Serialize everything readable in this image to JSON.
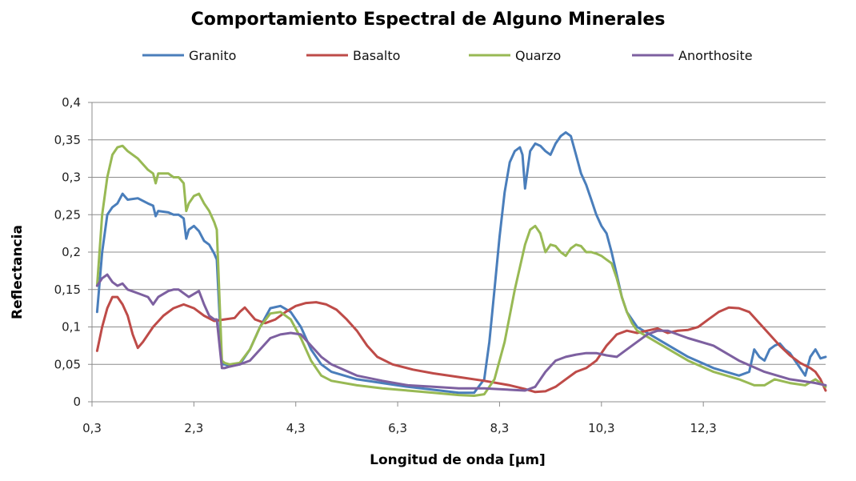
{
  "chart_data": {
    "type": "line",
    "title": "Comportamiento Espectral de Alguno Minerales",
    "xlabel": "Longitud de onda [µm]",
    "ylabel": "Reflectancia",
    "xlim": [
      0.3,
      14.7
    ],
    "ylim": [
      0,
      0.4
    ],
    "x_ticks": [
      "0,3",
      "2,3",
      "4,3",
      "6,3",
      "8,3",
      "10,3",
      "12,3"
    ],
    "x_tick_values": [
      0.3,
      2.3,
      4.3,
      6.3,
      8.3,
      10.3,
      12.3
    ],
    "y_ticks": [
      "0",
      "0,05",
      "0,1",
      "0,15",
      "0,2",
      "0,25",
      "0,3",
      "0,35",
      "0,4"
    ],
    "y_tick_values": [
      0,
      0.05,
      0.1,
      0.15,
      0.2,
      0.25,
      0.3,
      0.35,
      0.4
    ],
    "grid": "horizontal",
    "legend_position": "top",
    "series": [
      {
        "name": "Granito",
        "color": "#4a7ebb",
        "points": [
          [
            0.4,
            0.12
          ],
          [
            0.5,
            0.2
          ],
          [
            0.6,
            0.25
          ],
          [
            0.7,
            0.26
          ],
          [
            0.8,
            0.265
          ],
          [
            0.9,
            0.278
          ],
          [
            1.0,
            0.27
          ],
          [
            1.2,
            0.272
          ],
          [
            1.4,
            0.265
          ],
          [
            1.5,
            0.262
          ],
          [
            1.55,
            0.248
          ],
          [
            1.6,
            0.255
          ],
          [
            1.8,
            0.253
          ],
          [
            1.9,
            0.25
          ],
          [
            2.0,
            0.25
          ],
          [
            2.1,
            0.245
          ],
          [
            2.15,
            0.218
          ],
          [
            2.2,
            0.23
          ],
          [
            2.3,
            0.235
          ],
          [
            2.4,
            0.228
          ],
          [
            2.5,
            0.215
          ],
          [
            2.6,
            0.21
          ],
          [
            2.7,
            0.198
          ],
          [
            2.75,
            0.19
          ],
          [
            2.85,
            0.05
          ],
          [
            2.9,
            0.05
          ],
          [
            3.0,
            0.048
          ],
          [
            3.2,
            0.05
          ],
          [
            3.4,
            0.07
          ],
          [
            3.6,
            0.1
          ],
          [
            3.8,
            0.125
          ],
          [
            4.0,
            0.128
          ],
          [
            4.2,
            0.12
          ],
          [
            4.4,
            0.1
          ],
          [
            4.6,
            0.07
          ],
          [
            4.8,
            0.05
          ],
          [
            5.0,
            0.04
          ],
          [
            5.5,
            0.03
          ],
          [
            6.0,
            0.025
          ],
          [
            6.5,
            0.02
          ],
          [
            7.0,
            0.016
          ],
          [
            7.5,
            0.012
          ],
          [
            7.8,
            0.012
          ],
          [
            8.0,
            0.03
          ],
          [
            8.1,
            0.08
          ],
          [
            8.2,
            0.15
          ],
          [
            8.3,
            0.22
          ],
          [
            8.4,
            0.28
          ],
          [
            8.5,
            0.32
          ],
          [
            8.6,
            0.335
          ],
          [
            8.7,
            0.34
          ],
          [
            8.75,
            0.33
          ],
          [
            8.8,
            0.285
          ],
          [
            8.85,
            0.31
          ],
          [
            8.9,
            0.335
          ],
          [
            9.0,
            0.345
          ],
          [
            9.1,
            0.342
          ],
          [
            9.2,
            0.335
          ],
          [
            9.3,
            0.33
          ],
          [
            9.4,
            0.345
          ],
          [
            9.5,
            0.355
          ],
          [
            9.6,
            0.36
          ],
          [
            9.7,
            0.355
          ],
          [
            9.8,
            0.33
          ],
          [
            9.9,
            0.305
          ],
          [
            10.0,
            0.29
          ],
          [
            10.1,
            0.27
          ],
          [
            10.2,
            0.25
          ],
          [
            10.3,
            0.235
          ],
          [
            10.4,
            0.225
          ],
          [
            10.5,
            0.2
          ],
          [
            10.6,
            0.17
          ],
          [
            10.7,
            0.14
          ],
          [
            10.8,
            0.12
          ],
          [
            11.0,
            0.1
          ],
          [
            11.5,
            0.08
          ],
          [
            12.0,
            0.06
          ],
          [
            12.5,
            0.045
          ],
          [
            13.0,
            0.035
          ],
          [
            13.2,
            0.04
          ],
          [
            13.3,
            0.07
          ],
          [
            13.4,
            0.06
          ],
          [
            13.5,
            0.055
          ],
          [
            13.6,
            0.07
          ],
          [
            13.7,
            0.075
          ],
          [
            13.8,
            0.078
          ],
          [
            13.9,
            0.07
          ],
          [
            14.0,
            0.065
          ],
          [
            14.1,
            0.055
          ],
          [
            14.2,
            0.045
          ],
          [
            14.3,
            0.035
          ],
          [
            14.4,
            0.06
          ],
          [
            14.5,
            0.07
          ],
          [
            14.6,
            0.058
          ],
          [
            14.7,
            0.06
          ]
        ]
      },
      {
        "name": "Basalto",
        "color": "#be4b48",
        "points": [
          [
            0.4,
            0.068
          ],
          [
            0.5,
            0.1
          ],
          [
            0.6,
            0.125
          ],
          [
            0.7,
            0.14
          ],
          [
            0.8,
            0.14
          ],
          [
            0.9,
            0.13
          ],
          [
            1.0,
            0.115
          ],
          [
            1.1,
            0.09
          ],
          [
            1.2,
            0.072
          ],
          [
            1.3,
            0.08
          ],
          [
            1.5,
            0.1
          ],
          [
            1.7,
            0.115
          ],
          [
            1.9,
            0.125
          ],
          [
            2.1,
            0.13
          ],
          [
            2.3,
            0.125
          ],
          [
            2.5,
            0.115
          ],
          [
            2.7,
            0.108
          ],
          [
            2.9,
            0.11
          ],
          [
            3.1,
            0.112
          ],
          [
            3.2,
            0.12
          ],
          [
            3.3,
            0.126
          ],
          [
            3.4,
            0.118
          ],
          [
            3.5,
            0.11
          ],
          [
            3.7,
            0.105
          ],
          [
            3.9,
            0.11
          ],
          [
            4.1,
            0.12
          ],
          [
            4.3,
            0.128
          ],
          [
            4.5,
            0.132
          ],
          [
            4.7,
            0.133
          ],
          [
            4.9,
            0.13
          ],
          [
            5.1,
            0.123
          ],
          [
            5.3,
            0.11
          ],
          [
            5.5,
            0.095
          ],
          [
            5.7,
            0.075
          ],
          [
            5.9,
            0.06
          ],
          [
            6.2,
            0.05
          ],
          [
            6.6,
            0.043
          ],
          [
            7.0,
            0.038
          ],
          [
            7.5,
            0.033
          ],
          [
            8.0,
            0.028
          ],
          [
            8.5,
            0.022
          ],
          [
            8.8,
            0.017
          ],
          [
            9.0,
            0.013
          ],
          [
            9.2,
            0.014
          ],
          [
            9.4,
            0.02
          ],
          [
            9.6,
            0.03
          ],
          [
            9.8,
            0.04
          ],
          [
            10.0,
            0.045
          ],
          [
            10.2,
            0.055
          ],
          [
            10.4,
            0.075
          ],
          [
            10.6,
            0.09
          ],
          [
            10.8,
            0.095
          ],
          [
            11.0,
            0.092
          ],
          [
            11.2,
            0.095
          ],
          [
            11.4,
            0.098
          ],
          [
            11.6,
            0.092
          ],
          [
            11.8,
            0.095
          ],
          [
            12.0,
            0.096
          ],
          [
            12.2,
            0.1
          ],
          [
            12.4,
            0.11
          ],
          [
            12.6,
            0.12
          ],
          [
            12.8,
            0.126
          ],
          [
            13.0,
            0.125
          ],
          [
            13.2,
            0.12
          ],
          [
            13.4,
            0.105
          ],
          [
            13.6,
            0.09
          ],
          [
            13.8,
            0.075
          ],
          [
            14.0,
            0.062
          ],
          [
            14.2,
            0.052
          ],
          [
            14.4,
            0.045
          ],
          [
            14.5,
            0.04
          ],
          [
            14.6,
            0.03
          ],
          [
            14.7,
            0.015
          ]
        ]
      },
      {
        "name": "Quarzo",
        "color": "#98b954",
        "points": [
          [
            0.4,
            0.155
          ],
          [
            0.5,
            0.25
          ],
          [
            0.6,
            0.3
          ],
          [
            0.7,
            0.33
          ],
          [
            0.8,
            0.34
          ],
          [
            0.9,
            0.342
          ],
          [
            1.0,
            0.335
          ],
          [
            1.2,
            0.325
          ],
          [
            1.4,
            0.31
          ],
          [
            1.5,
            0.305
          ],
          [
            1.55,
            0.292
          ],
          [
            1.6,
            0.305
          ],
          [
            1.8,
            0.305
          ],
          [
            1.9,
            0.3
          ],
          [
            2.0,
            0.3
          ],
          [
            2.1,
            0.292
          ],
          [
            2.15,
            0.255
          ],
          [
            2.2,
            0.265
          ],
          [
            2.3,
            0.275
          ],
          [
            2.4,
            0.278
          ],
          [
            2.5,
            0.265
          ],
          [
            2.6,
            0.255
          ],
          [
            2.7,
            0.24
          ],
          [
            2.75,
            0.23
          ],
          [
            2.85,
            0.055
          ],
          [
            2.9,
            0.052
          ],
          [
            3.0,
            0.05
          ],
          [
            3.2,
            0.052
          ],
          [
            3.4,
            0.07
          ],
          [
            3.6,
            0.1
          ],
          [
            3.8,
            0.118
          ],
          [
            4.0,
            0.12
          ],
          [
            4.2,
            0.11
          ],
          [
            4.4,
            0.085
          ],
          [
            4.6,
            0.055
          ],
          [
            4.8,
            0.035
          ],
          [
            5.0,
            0.028
          ],
          [
            5.5,
            0.022
          ],
          [
            6.0,
            0.018
          ],
          [
            6.5,
            0.015
          ],
          [
            7.0,
            0.012
          ],
          [
            7.5,
            0.009
          ],
          [
            7.8,
            0.008
          ],
          [
            8.0,
            0.01
          ],
          [
            8.2,
            0.03
          ],
          [
            8.4,
            0.08
          ],
          [
            8.6,
            0.15
          ],
          [
            8.8,
            0.21
          ],
          [
            8.9,
            0.23
          ],
          [
            9.0,
            0.235
          ],
          [
            9.1,
            0.225
          ],
          [
            9.2,
            0.2
          ],
          [
            9.3,
            0.21
          ],
          [
            9.4,
            0.208
          ],
          [
            9.5,
            0.2
          ],
          [
            9.6,
            0.195
          ],
          [
            9.7,
            0.205
          ],
          [
            9.8,
            0.21
          ],
          [
            9.9,
            0.208
          ],
          [
            10.0,
            0.2
          ],
          [
            10.1,
            0.2
          ],
          [
            10.2,
            0.198
          ],
          [
            10.3,
            0.195
          ],
          [
            10.4,
            0.19
          ],
          [
            10.5,
            0.185
          ],
          [
            10.6,
            0.165
          ],
          [
            10.7,
            0.14
          ],
          [
            10.8,
            0.12
          ],
          [
            10.9,
            0.105
          ],
          [
            11.0,
            0.095
          ],
          [
            11.5,
            0.075
          ],
          [
            12.0,
            0.055
          ],
          [
            12.5,
            0.04
          ],
          [
            13.0,
            0.03
          ],
          [
            13.3,
            0.022
          ],
          [
            13.5,
            0.022
          ],
          [
            13.7,
            0.03
          ],
          [
            14.0,
            0.025
          ],
          [
            14.3,
            0.022
          ],
          [
            14.5,
            0.03
          ],
          [
            14.7,
            0.02
          ]
        ]
      },
      {
        "name": "Anorthosite",
        "color": "#7d60a0",
        "points": [
          [
            0.4,
            0.155
          ],
          [
            0.5,
            0.165
          ],
          [
            0.6,
            0.17
          ],
          [
            0.7,
            0.16
          ],
          [
            0.8,
            0.155
          ],
          [
            0.9,
            0.158
          ],
          [
            1.0,
            0.15
          ],
          [
            1.2,
            0.145
          ],
          [
            1.4,
            0.14
          ],
          [
            1.5,
            0.13
          ],
          [
            1.6,
            0.14
          ],
          [
            1.8,
            0.148
          ],
          [
            1.9,
            0.15
          ],
          [
            2.0,
            0.15
          ],
          [
            2.1,
            0.145
          ],
          [
            2.2,
            0.14
          ],
          [
            2.4,
            0.148
          ],
          [
            2.5,
            0.13
          ],
          [
            2.6,
            0.115
          ],
          [
            2.7,
            0.11
          ],
          [
            2.75,
            0.11
          ],
          [
            2.85,
            0.045
          ],
          [
            2.9,
            0.045
          ],
          [
            3.0,
            0.047
          ],
          [
            3.2,
            0.05
          ],
          [
            3.4,
            0.055
          ],
          [
            3.6,
            0.07
          ],
          [
            3.8,
            0.085
          ],
          [
            4.0,
            0.09
          ],
          [
            4.2,
            0.092
          ],
          [
            4.4,
            0.09
          ],
          [
            4.6,
            0.075
          ],
          [
            4.8,
            0.06
          ],
          [
            5.0,
            0.05
          ],
          [
            5.5,
            0.035
          ],
          [
            6.0,
            0.028
          ],
          [
            6.5,
            0.022
          ],
          [
            7.0,
            0.02
          ],
          [
            7.5,
            0.018
          ],
          [
            8.0,
            0.018
          ],
          [
            8.5,
            0.016
          ],
          [
            8.8,
            0.015
          ],
          [
            9.0,
            0.02
          ],
          [
            9.2,
            0.04
          ],
          [
            9.4,
            0.055
          ],
          [
            9.6,
            0.06
          ],
          [
            9.8,
            0.063
          ],
          [
            10.0,
            0.065
          ],
          [
            10.2,
            0.065
          ],
          [
            10.4,
            0.062
          ],
          [
            10.6,
            0.06
          ],
          [
            10.8,
            0.07
          ],
          [
            11.0,
            0.08
          ],
          [
            11.2,
            0.09
          ],
          [
            11.4,
            0.095
          ],
          [
            11.6,
            0.095
          ],
          [
            11.8,
            0.09
          ],
          [
            12.0,
            0.085
          ],
          [
            12.5,
            0.075
          ],
          [
            13.0,
            0.055
          ],
          [
            13.5,
            0.04
          ],
          [
            14.0,
            0.03
          ],
          [
            14.5,
            0.025
          ],
          [
            14.7,
            0.022
          ]
        ]
      }
    ]
  }
}
